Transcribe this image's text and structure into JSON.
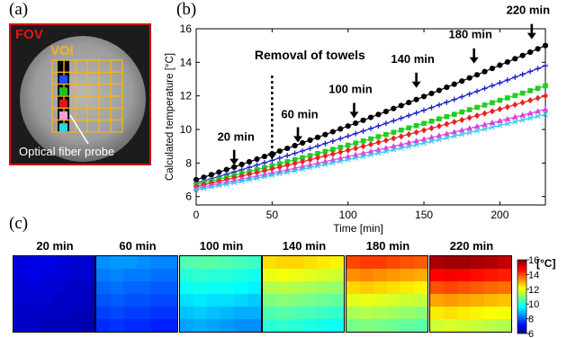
{
  "panel_labels": {
    "a": "(a)",
    "b": "(b)",
    "c": "(c)"
  },
  "panel_a": {
    "fov_label": "FOV",
    "voi_label": "VOI",
    "probe_label": "Optical fiber probe",
    "colors": {
      "border": "#d21010",
      "grid": "#f2b31c",
      "fov": "#e01515",
      "voi": "#f2b31c"
    },
    "probe_markers": [
      "#1a4fff",
      "#1fc01f",
      "#e01515",
      "#f0a0d8",
      "#22d8e8"
    ]
  },
  "chart_data": {
    "type": "line",
    "xlabel": "Time [min]",
    "ylabel": "Calculated temperature [°C]",
    "xlim": [
      0,
      230
    ],
    "ylim": [
      5.5,
      16
    ],
    "xticks": [
      0,
      50,
      100,
      150,
      200
    ],
    "yticks": [
      6,
      8,
      10,
      12,
      14,
      16
    ],
    "grid": false,
    "series": [
      {
        "color": "#000000",
        "marker": "circle",
        "x": [
          0,
          230
        ],
        "y": [
          7.0,
          15.0
        ]
      },
      {
        "color": "#2020d0",
        "marker": "plus",
        "x": [
          0,
          230
        ],
        "y": [
          6.8,
          13.8
        ]
      },
      {
        "color": "#22cc22",
        "marker": "square",
        "x": [
          0,
          230
        ],
        "y": [
          6.7,
          12.6
        ]
      },
      {
        "color": "#ee2020",
        "marker": "diamond",
        "x": [
          0,
          230
        ],
        "y": [
          6.6,
          12.0
        ]
      },
      {
        "color": "#e040e0",
        "marker": "triangle",
        "x": [
          0,
          230
        ],
        "y": [
          6.5,
          11.2
        ]
      },
      {
        "color": "#30c8e8",
        "marker": "x",
        "x": [
          0,
          230
        ],
        "y": [
          6.4,
          10.9
        ]
      }
    ],
    "annotations": [
      {
        "text": "20 min",
        "x": 25,
        "y": 7.5
      },
      {
        "text": "60 min",
        "x": 67,
        "y": 8.85
      },
      {
        "text": "100 min",
        "x": 104,
        "y": 10.3
      },
      {
        "text": "140 min",
        "x": 145,
        "y": 12.1
      },
      {
        "text": "180 min",
        "x": 183,
        "y": 13.55
      },
      {
        "text": "220 min",
        "x": 221,
        "y": 15.0
      }
    ],
    "towel_label": "Removal of towels",
    "towel_x": 50
  },
  "maps": {
    "labels": [
      "20 min",
      "60 min",
      "100 min",
      "140 min",
      "180 min",
      "220 min"
    ],
    "grids": [
      [
        [
          6.8,
          6.9,
          6.9,
          6.8,
          6.7,
          6.7
        ],
        [
          6.8,
          6.9,
          6.8,
          6.8,
          6.7,
          6.7
        ],
        [
          6.7,
          6.8,
          6.7,
          6.7,
          6.6,
          6.6
        ],
        [
          6.7,
          6.7,
          6.7,
          6.6,
          6.6,
          6.6
        ],
        [
          6.6,
          6.6,
          6.6,
          6.6,
          6.5,
          6.5
        ],
        [
          6.6,
          6.6,
          6.5,
          6.5,
          6.5,
          6.4
        ]
      ],
      [
        [
          8.5,
          8.6,
          8.6,
          8.5,
          8.4,
          8.4
        ],
        [
          8.3,
          8.4,
          8.3,
          8.3,
          8.2,
          8.2
        ],
        [
          8.1,
          8.2,
          8.1,
          8.1,
          8.0,
          8.0
        ],
        [
          7.9,
          8.0,
          7.9,
          7.9,
          7.8,
          7.8
        ],
        [
          7.7,
          7.8,
          7.7,
          7.7,
          7.6,
          7.6
        ],
        [
          7.5,
          7.6,
          7.5,
          7.5,
          7.4,
          7.4
        ]
      ],
      [
        [
          10.4,
          10.5,
          10.5,
          10.4,
          10.3,
          10.2
        ],
        [
          10.0,
          10.1,
          10.0,
          10.0,
          9.9,
          9.8
        ],
        [
          9.7,
          9.8,
          9.7,
          9.7,
          9.6,
          9.5
        ],
        [
          9.3,
          9.4,
          9.3,
          9.3,
          9.2,
          9.1
        ],
        [
          9.0,
          9.1,
          9.0,
          8.9,
          8.8,
          8.8
        ],
        [
          8.7,
          8.8,
          8.7,
          8.6,
          8.5,
          8.5
        ]
      ],
      [
        [
          12.5,
          12.6,
          12.6,
          12.5,
          12.4,
          12.3
        ],
        [
          12.0,
          12.1,
          12.0,
          11.9,
          11.8,
          11.7
        ],
        [
          11.4,
          11.5,
          11.4,
          11.3,
          11.2,
          11.1
        ],
        [
          10.9,
          11.0,
          10.9,
          10.8,
          10.7,
          10.6
        ],
        [
          10.4,
          10.5,
          10.4,
          10.3,
          10.2,
          10.1
        ],
        [
          10.0,
          10.1,
          10.0,
          9.9,
          9.8,
          9.7
        ]
      ],
      [
        [
          14.0,
          14.1,
          14.1,
          14.0,
          13.9,
          13.8
        ],
        [
          13.3,
          13.4,
          13.3,
          13.2,
          13.1,
          13.0
        ],
        [
          12.6,
          12.7,
          12.6,
          12.5,
          12.4,
          12.3
        ],
        [
          11.9,
          12.0,
          11.9,
          11.8,
          11.7,
          11.6
        ],
        [
          11.3,
          11.4,
          11.3,
          11.2,
          11.1,
          11.0
        ],
        [
          10.8,
          10.9,
          10.8,
          10.7,
          10.6,
          10.5
        ]
      ],
      [
        [
          15.6,
          15.7,
          15.7,
          15.6,
          15.5,
          15.3
        ],
        [
          14.7,
          14.8,
          14.7,
          14.6,
          14.5,
          14.4
        ],
        [
          13.9,
          14.0,
          13.9,
          13.8,
          13.7,
          13.6
        ],
        [
          13.1,
          13.2,
          13.1,
          13.0,
          12.9,
          12.8
        ],
        [
          12.4,
          12.5,
          12.4,
          12.3,
          12.2,
          12.1
        ],
        [
          11.7,
          11.8,
          11.7,
          11.6,
          11.5,
          11.4
        ]
      ]
    ]
  },
  "colorbar": {
    "unit": "[°C]",
    "ticks": [
      6,
      8,
      10,
      12,
      14,
      16
    ],
    "range": [
      6,
      16
    ]
  }
}
